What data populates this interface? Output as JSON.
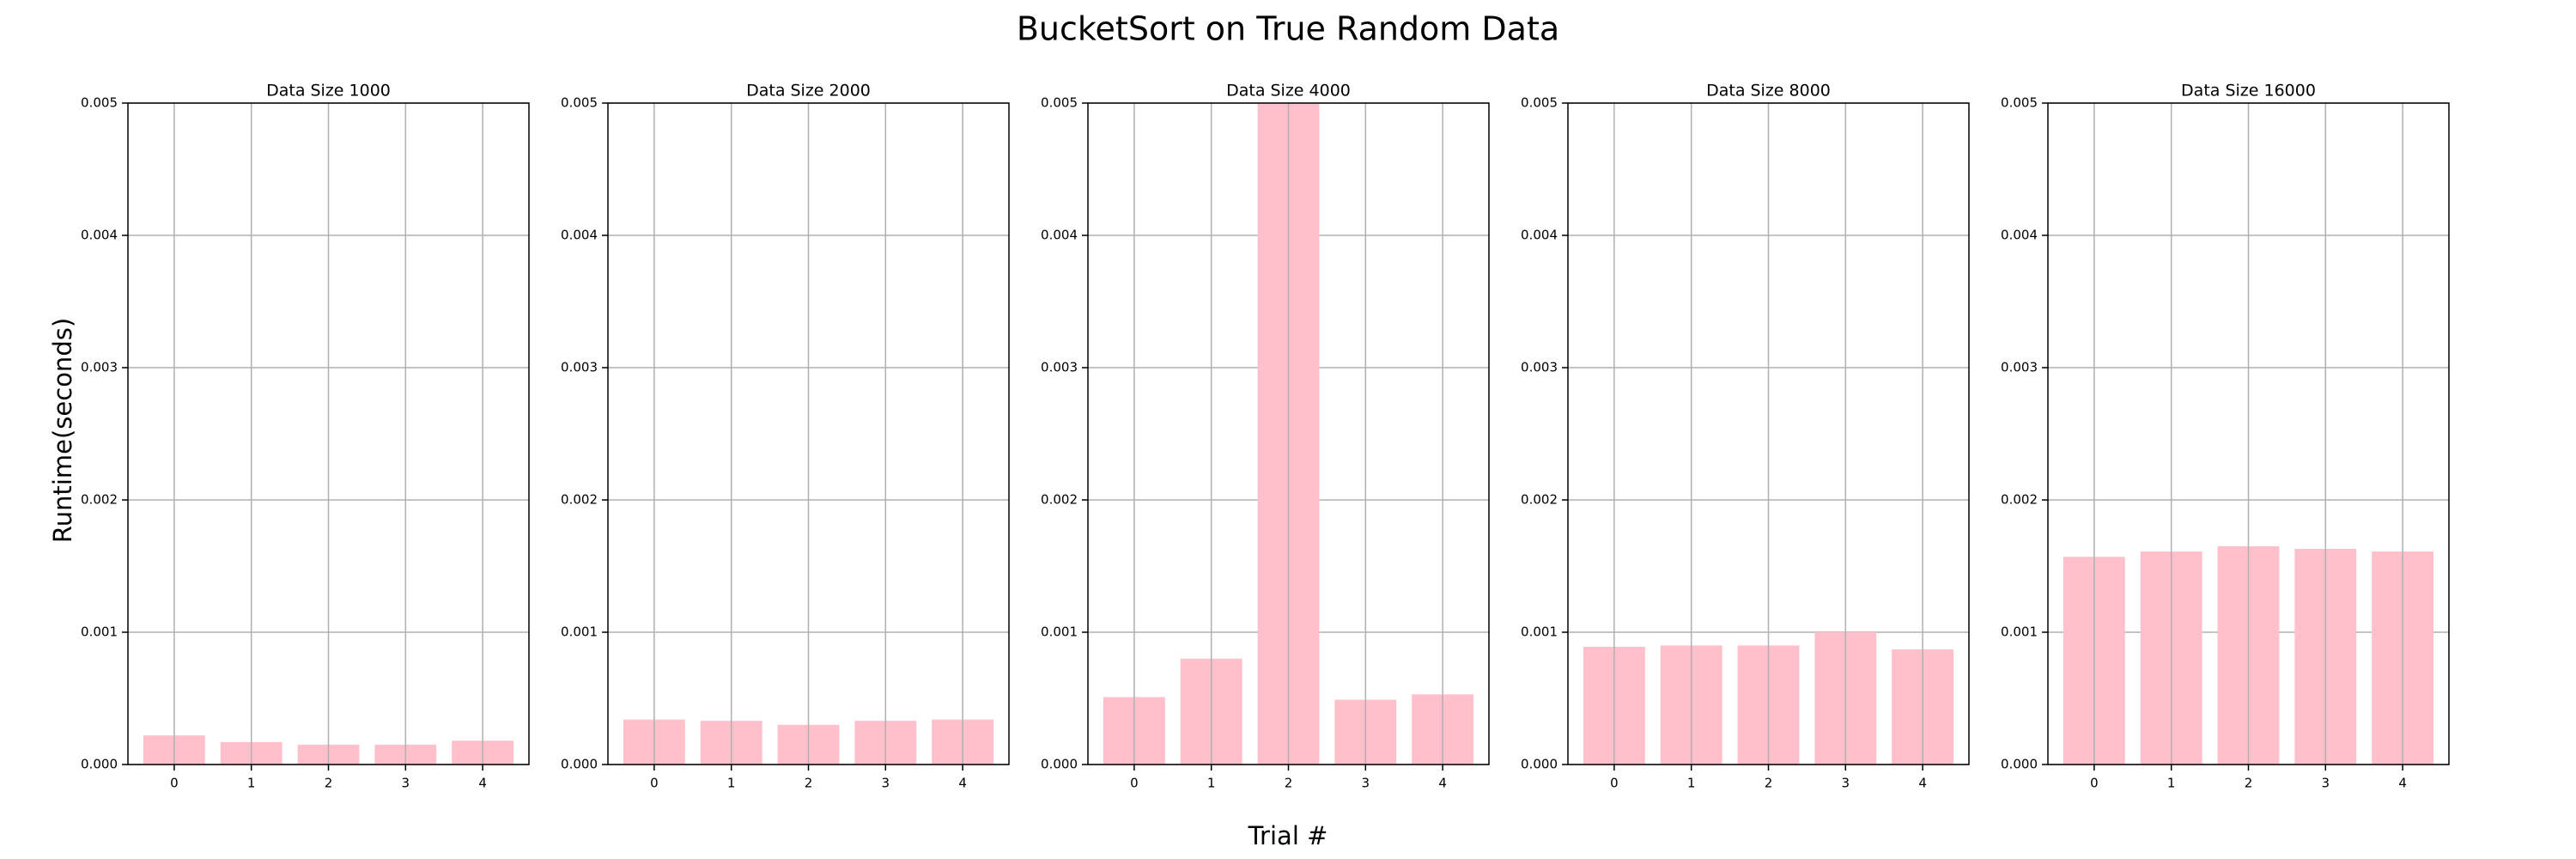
{
  "title": "BucketSort on True Random Data",
  "x_label": "Trial #",
  "y_label": "Runtime(seconds)",
  "chart_data": [
    {
      "type": "bar",
      "title": "Data Size 1000",
      "categories": [
        "0",
        "1",
        "2",
        "3",
        "4"
      ],
      "values": [
        0.00022,
        0.00017,
        0.00015,
        0.00015,
        0.00018
      ],
      "color": "#ffc0cb",
      "ylim": [
        0,
        0.005
      ],
      "yticks": [
        {
          "value": 0,
          "label": "0.000"
        },
        {
          "value": 0.001,
          "label": "0.001"
        },
        {
          "value": 0.002,
          "label": "0.002"
        },
        {
          "value": 0.003,
          "label": "0.003"
        },
        {
          "value": 0.004,
          "label": "0.004"
        },
        {
          "value": 0.005,
          "label": "0.005"
        }
      ],
      "grid": true
    },
    {
      "type": "bar",
      "title": "Data Size 2000",
      "categories": [
        "0",
        "1",
        "2",
        "3",
        "4"
      ],
      "values": [
        0.00034,
        0.00033,
        0.0003,
        0.00033,
        0.00034
      ],
      "color": "#ffc0cb",
      "ylim": [
        0,
        0.005
      ],
      "yticks": [
        {
          "value": 0,
          "label": "0.000"
        },
        {
          "value": 0.001,
          "label": "0.001"
        },
        {
          "value": 0.002,
          "label": "0.002"
        },
        {
          "value": 0.003,
          "label": "0.003"
        },
        {
          "value": 0.004,
          "label": "0.004"
        },
        {
          "value": 0.005,
          "label": "0.005"
        }
      ],
      "grid": true
    },
    {
      "type": "bar",
      "title": "Data Size 4000",
      "categories": [
        "0",
        "1",
        "2",
        "3",
        "4"
      ],
      "values": [
        0.00051,
        0.0008,
        0.005,
        0.00049,
        0.00053
      ],
      "color": "#ffc0cb",
      "ylim": [
        0,
        0.005
      ],
      "yticks": [
        {
          "value": 0,
          "label": "0.000"
        },
        {
          "value": 0.001,
          "label": "0.001"
        },
        {
          "value": 0.002,
          "label": "0.002"
        },
        {
          "value": 0.003,
          "label": "0.003"
        },
        {
          "value": 0.004,
          "label": "0.004"
        },
        {
          "value": 0.005,
          "label": "0.005"
        }
      ],
      "grid": true
    },
    {
      "type": "bar",
      "title": "Data Size 8000",
      "categories": [
        "0",
        "1",
        "2",
        "3",
        "4"
      ],
      "values": [
        0.00089,
        0.0009,
        0.0009,
        0.001,
        0.00087
      ],
      "color": "#ffc0cb",
      "ylim": [
        0,
        0.005
      ],
      "yticks": [
        {
          "value": 0,
          "label": "0.000"
        },
        {
          "value": 0.001,
          "label": "0.001"
        },
        {
          "value": 0.002,
          "label": "0.002"
        },
        {
          "value": 0.003,
          "label": "0.003"
        },
        {
          "value": 0.004,
          "label": "0.004"
        },
        {
          "value": 0.005,
          "label": "0.005"
        }
      ],
      "grid": true
    },
    {
      "type": "bar",
      "title": "Data Size 16000",
      "categories": [
        "0",
        "1",
        "2",
        "3",
        "4"
      ],
      "values": [
        0.00157,
        0.00161,
        0.00165,
        0.00163,
        0.00161
      ],
      "color": "#ffc0cb",
      "ylim": [
        0,
        0.005
      ],
      "yticks": [
        {
          "value": 0,
          "label": "0.000"
        },
        {
          "value": 0.001,
          "label": "0.001"
        },
        {
          "value": 0.002,
          "label": "0.002"
        },
        {
          "value": 0.003,
          "label": "0.003"
        },
        {
          "value": 0.004,
          "label": "0.004"
        },
        {
          "value": 0.005,
          "label": "0.005"
        }
      ],
      "grid": true
    }
  ]
}
